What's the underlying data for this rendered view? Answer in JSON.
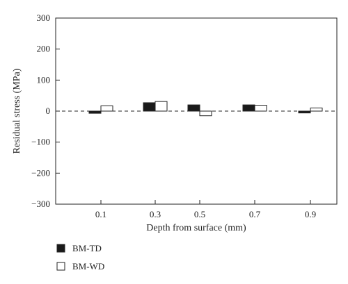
{
  "chart_data": {
    "type": "bar",
    "title": "",
    "xlabel": "Depth from surface (mm)",
    "ylabel": "Residual stress (MPa)",
    "categories": [
      "0.1",
      "0.3",
      "0.5",
      "0.7",
      "0.9"
    ],
    "ylim": [
      -300,
      300
    ],
    "yticks": [
      -300,
      -200,
      -100,
      0,
      100,
      200,
      300
    ],
    "ytick_labels": [
      "−300",
      "−200",
      "−100",
      "0",
      "100",
      "200",
      "300"
    ],
    "zero_line": "dashed",
    "grid": false,
    "legend_position": "bottom-left",
    "series": [
      {
        "name": "BM-TD",
        "values": [
          -7,
          27,
          20,
          20,
          -6
        ],
        "fill": "#1a1a1a"
      },
      {
        "name": "BM-WD",
        "values": [
          17,
          31,
          -15,
          19,
          10
        ],
        "fill": "#ffffff"
      }
    ]
  }
}
